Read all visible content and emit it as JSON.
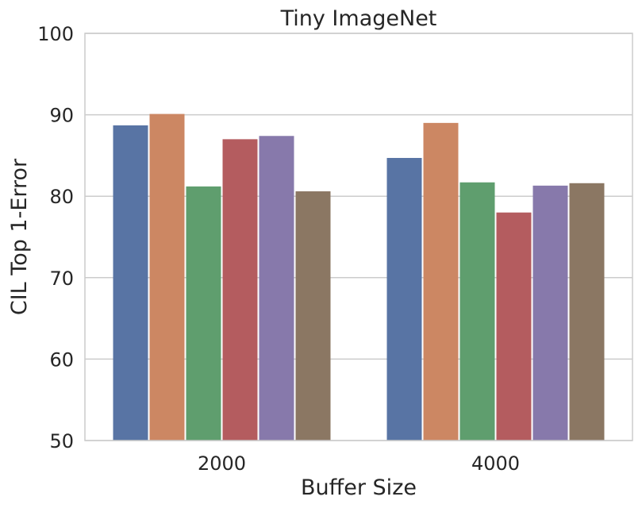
{
  "chart_data": {
    "type": "bar",
    "title": "Tiny ImageNet",
    "xlabel": "Buffer Size",
    "ylabel": "CIL Top 1-Error",
    "categories": [
      "2000",
      "4000"
    ],
    "ylim": [
      50,
      100
    ],
    "yticks": [
      50,
      60,
      70,
      80,
      90,
      100
    ],
    "grid": "y",
    "legend": "none",
    "series": [
      {
        "color": "#5874a4",
        "values": [
          88.7,
          84.7
        ]
      },
      {
        "color": "#cc8763",
        "values": [
          90.1,
          89.0
        ]
      },
      {
        "color": "#5f9e6e",
        "values": [
          81.2,
          81.7
        ]
      },
      {
        "color": "#b45c5f",
        "values": [
          87.0,
          78.0
        ]
      },
      {
        "color": "#8779ab",
        "values": [
          87.4,
          81.3
        ]
      },
      {
        "color": "#8b7763",
        "values": [
          80.6,
          81.6
        ]
      }
    ]
  }
}
